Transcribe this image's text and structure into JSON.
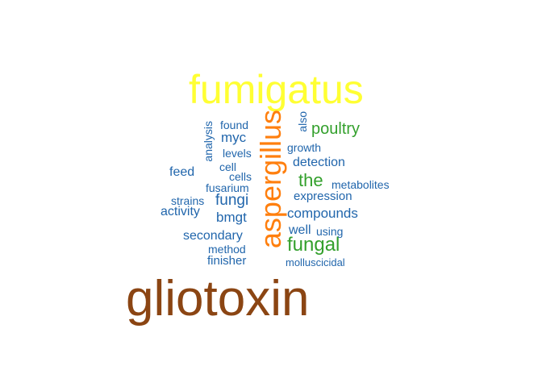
{
  "colors": {
    "largest": "#8b4513",
    "orange": "#ff7f0e",
    "yellow": "#ffff33",
    "green": "#33a02c",
    "blue": "#2166ac"
  },
  "words": {
    "gliotoxin": "gliotoxin",
    "fumigatus": "fumigatus",
    "aspergillus": "aspergillus",
    "fungal": "fungal",
    "poultry": "poultry",
    "the": "the",
    "also": "also",
    "found": "found",
    "myc": "myc",
    "analysis": "analysis",
    "levels": "levels",
    "growth": "growth",
    "cell": "cell",
    "detection": "detection",
    "feed": "feed",
    "cells": "cells",
    "metabolites": "metabolites",
    "fusarium": "fusarium",
    "expression": "expression",
    "strains": "strains",
    "fungi": "fungi",
    "activity": "activity",
    "bmgt": "bmgt",
    "compounds": "compounds",
    "well": "well",
    "using": "using",
    "secondary": "secondary",
    "method": "method",
    "finisher": "finisher",
    "molluscicidal": "molluscicidal"
  }
}
